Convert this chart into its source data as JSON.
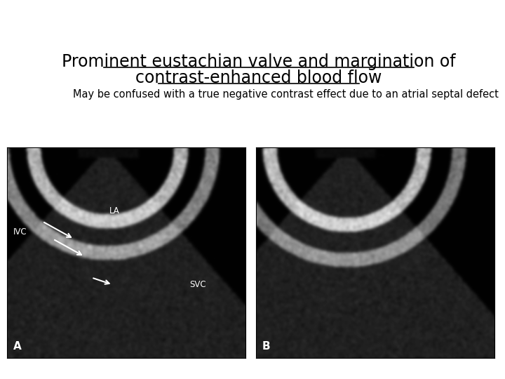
{
  "title_line1": "Prominent eustachian valve and margination of",
  "title_line2": "contrast-enhanced blood flow",
  "subtitle": "May be confused with a true negative contrast effect due to an atrial septal defect",
  "label_A": "A",
  "label_B": "B",
  "label_IVC": "IVC",
  "label_LA": "LA",
  "label_SVC": "SVC",
  "bg_color": "#ffffff",
  "title_fontsize": 17,
  "subtitle_fontsize": 10.5,
  "img_label_fontsize": 10
}
